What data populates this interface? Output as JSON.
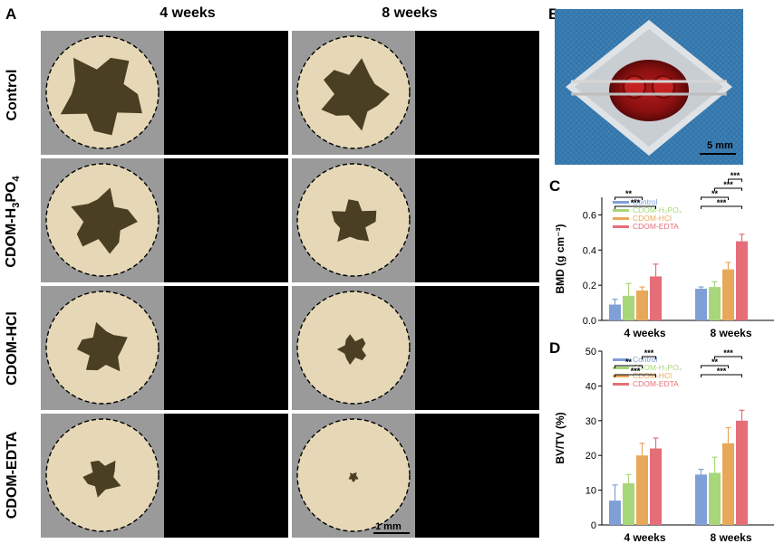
{
  "panels": {
    "A": "A",
    "B": "B",
    "C": "C",
    "D": "D"
  },
  "columns": [
    "4 weeks",
    "8 weeks"
  ],
  "rows": [
    "Control",
    "CDOM-H3PO4",
    "CDOM-HCl",
    "CDOM-EDTA"
  ],
  "row_label_parts": {
    "h3po4": {
      "prefix": "CDOM-H",
      "sub1": "3",
      "mid": "PO",
      "sub2": "4"
    }
  },
  "scale_a": "1 mm",
  "scale_b": "5 mm",
  "colors": {
    "control": "#7f9fd6",
    "h3po4": "#a8d67a",
    "hcl": "#e8a85a",
    "edta": "#e56e78",
    "disk_fill": "#e6d8b6",
    "defect": "#4a3f22"
  },
  "chart_data": [
    {
      "type": "bar",
      "panel": "C",
      "categories": [
        "4 weeks",
        "8 weeks"
      ],
      "ylabel": "BMD (g cm⁻³)",
      "ylim": [
        0,
        0.7
      ],
      "yticks": [
        "0.0",
        "0.2",
        "0.4",
        "0.6"
      ],
      "legend_placement": "top-left",
      "series": [
        {
          "name": "Control",
          "values": [
            0.09,
            0.18
          ],
          "errors": [
            0.03,
            0.01
          ]
        },
        {
          "name": "CDOM-H₃PO₄",
          "values": [
            0.14,
            0.19
          ],
          "errors": [
            0.07,
            0.03
          ]
        },
        {
          "name": "CDOM-HCl",
          "values": [
            0.17,
            0.29
          ],
          "errors": [
            0.02,
            0.04
          ]
        },
        {
          "name": "CDOM-EDTA",
          "values": [
            0.25,
            0.45
          ],
          "errors": [
            0.07,
            0.04
          ]
        }
      ],
      "significance": [
        {
          "group": 0,
          "from": 0,
          "to": 3,
          "label": "***"
        },
        {
          "group": 0,
          "from": 0,
          "to": 2,
          "label": "**"
        },
        {
          "group": 1,
          "from": 0,
          "to": 3,
          "label": "***"
        },
        {
          "group": 1,
          "from": 0,
          "to": 2,
          "label": "**"
        },
        {
          "group": 1,
          "from": 1,
          "to": 3,
          "label": "***"
        },
        {
          "group": 1,
          "from": 2,
          "to": 3,
          "label": "***"
        }
      ]
    },
    {
      "type": "bar",
      "panel": "D",
      "categories": [
        "4 weeks",
        "8 weeks"
      ],
      "ylabel": "BV/TV (%)",
      "ylim": [
        0,
        50
      ],
      "yticks": [
        "0",
        "10",
        "20",
        "30",
        "40",
        "50"
      ],
      "legend_placement": "top-left",
      "series": [
        {
          "name": "Control",
          "values": [
            7,
            14.5
          ],
          "errors": [
            4.5,
            1.5
          ]
        },
        {
          "name": "CDOM-H₃PO₄",
          "values": [
            12,
            15
          ],
          "errors": [
            2.5,
            4.5
          ]
        },
        {
          "name": "CDOM-HCl",
          "values": [
            20,
            23.5
          ],
          "errors": [
            3.5,
            4.5
          ]
        },
        {
          "name": "CDOM-EDTA",
          "values": [
            22,
            30
          ],
          "errors": [
            3,
            3
          ]
        }
      ],
      "significance": [
        {
          "group": 0,
          "from": 0,
          "to": 3,
          "label": "***"
        },
        {
          "group": 0,
          "from": 0,
          "to": 2,
          "label": "**"
        },
        {
          "group": 0,
          "from": 2,
          "to": 3,
          "label": "***"
        },
        {
          "group": 1,
          "from": 0,
          "to": 3,
          "label": "***"
        },
        {
          "group": 1,
          "from": 0,
          "to": 2,
          "label": "**"
        },
        {
          "group": 1,
          "from": 1,
          "to": 3,
          "label": "***"
        }
      ]
    }
  ]
}
